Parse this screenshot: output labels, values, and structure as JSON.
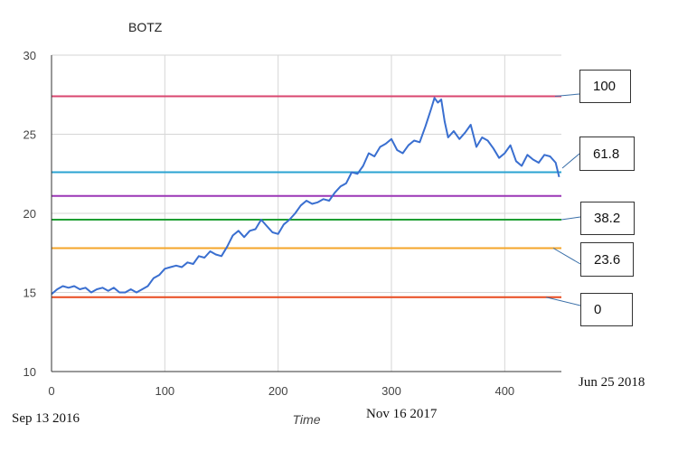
{
  "chart_data": {
    "type": "line",
    "title": "BOTZ",
    "xlabel": "Time",
    "ylabel": "",
    "xlim": [
      0,
      450
    ],
    "ylim": [
      10,
      30
    ],
    "xticks": [
      0,
      100,
      200,
      300,
      400
    ],
    "yticks": [
      10,
      15,
      20,
      25,
      30
    ],
    "grid": true,
    "series": [
      {
        "color": "#3a6fd0",
        "x": [
          0,
          5,
          10,
          15,
          20,
          25,
          30,
          35,
          40,
          45,
          50,
          55,
          60,
          65,
          70,
          75,
          80,
          85,
          90,
          95,
          100,
          105,
          110,
          115,
          120,
          125,
          130,
          135,
          140,
          145,
          150,
          155,
          160,
          165,
          170,
          175,
          180,
          185,
          190,
          195,
          200,
          205,
          210,
          215,
          220,
          225,
          230,
          235,
          240,
          245,
          250,
          255,
          260,
          265,
          270,
          275,
          280,
          285,
          290,
          295,
          300,
          305,
          310,
          315,
          320,
          325,
          330,
          335,
          338,
          341,
          344,
          347,
          350,
          355,
          360,
          365,
          370,
          375,
          380,
          385,
          390,
          395,
          400,
          405,
          410,
          415,
          420,
          425,
          430,
          435,
          440,
          445,
          448
        ],
        "y": [
          14.9,
          15.2,
          15.4,
          15.3,
          15.4,
          15.2,
          15.3,
          15.0,
          15.2,
          15.3,
          15.1,
          15.3,
          15.0,
          15.0,
          15.2,
          15.0,
          15.2,
          15.4,
          15.9,
          16.1,
          16.5,
          16.6,
          16.7,
          16.6,
          16.9,
          16.8,
          17.3,
          17.2,
          17.6,
          17.4,
          17.3,
          17.9,
          18.6,
          18.9,
          18.5,
          18.9,
          19.0,
          19.6,
          19.2,
          18.8,
          18.7,
          19.3,
          19.6,
          20.0,
          20.5,
          20.8,
          20.6,
          20.7,
          20.9,
          20.8,
          21.3,
          21.7,
          21.9,
          22.6,
          22.5,
          23.0,
          23.8,
          23.6,
          24.2,
          24.4,
          24.7,
          24.0,
          23.8,
          24.3,
          24.6,
          24.5,
          25.5,
          26.6,
          27.3,
          27.0,
          27.2,
          25.8,
          24.8,
          25.2,
          24.7,
          25.1,
          25.6,
          24.2,
          24.8,
          24.6,
          24.1,
          23.5,
          23.8,
          24.3,
          23.3,
          23.0,
          23.7,
          23.4,
          23.2,
          23.7,
          23.6,
          23.2,
          22.3
        ]
      }
    ],
    "levels": [
      {
        "label": "100",
        "value": 27.4,
        "color": "#d9466f"
      },
      {
        "label": "61.8",
        "value": 22.6,
        "color": "#2aa3d1"
      },
      {
        "value": 21.1,
        "color": "#9b36b6"
      },
      {
        "label": "38.2",
        "value": 19.6,
        "color": "#1e9e32"
      },
      {
        "label": "23.6",
        "value": 17.8,
        "color": "#f4a62a"
      },
      {
        "label": "0",
        "value": 14.7,
        "color": "#e84a1f"
      }
    ],
    "date_annotations": [
      "Sep 13 2016",
      "Nov 16 2017",
      "Jun 25 2018"
    ]
  }
}
